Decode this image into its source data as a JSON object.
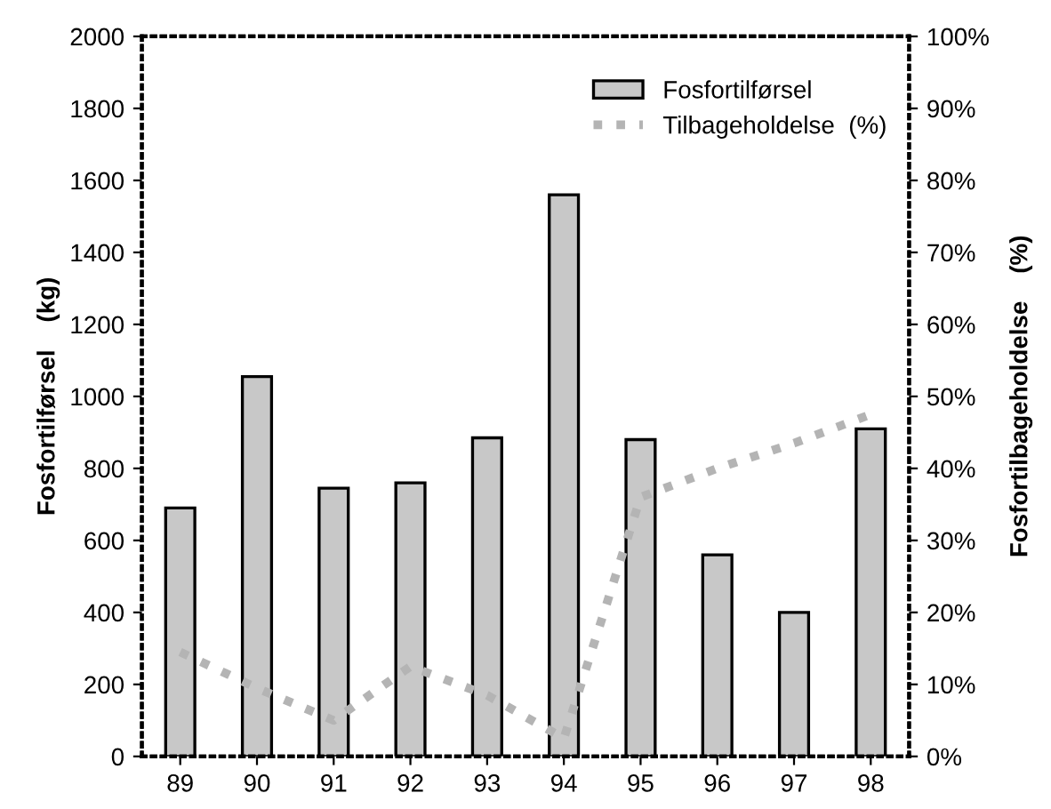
{
  "chart_data": {
    "type": "bar",
    "categories": [
      "89",
      "90",
      "91",
      "92",
      "93",
      "94",
      "95",
      "96",
      "97",
      "98"
    ],
    "ylabel": "Fosfortilførsel    (kg)",
    "y2label": "Fosfortilbageholdelse    (%)",
    "ylim": [
      0,
      2000
    ],
    "yticks": [
      0,
      200,
      400,
      600,
      800,
      1000,
      1200,
      1400,
      1600,
      1800,
      2000
    ],
    "y2lim": [
      0,
      100
    ],
    "y2ticks": [
      {
        "value": 0,
        "label": "0%"
      },
      {
        "value": 10,
        "label": "10%"
      },
      {
        "value": 20,
        "label": "20%"
      },
      {
        "value": 30,
        "label": "30%"
      },
      {
        "value": 40,
        "label": "40%"
      },
      {
        "value": 50,
        "label": "50%"
      },
      {
        "value": 60,
        "label": "60%"
      },
      {
        "value": 70,
        "label": "70%"
      },
      {
        "value": 80,
        "label": "80%"
      },
      {
        "value": 90,
        "label": "90%"
      },
      {
        "value": 100,
        "label": "100%"
      }
    ],
    "grid": false,
    "legend": "top right",
    "series": [
      {
        "name": "Fosfortilførsel",
        "color": "#c8c8c8",
        "values": [
          690,
          1055,
          745,
          760,
          885,
          1560,
          880,
          560,
          400,
          910
        ]
      },
      {
        "name": "Tilbageholdelse  (%)",
        "type": "line",
        "axis": "y2",
        "color": "#b4b4b4",
        "line_style": "dotted",
        "values": [
          14.5,
          9.5,
          5,
          12.5,
          8.5,
          2.5,
          36,
          40,
          43.5,
          47.5
        ]
      }
    ]
  }
}
